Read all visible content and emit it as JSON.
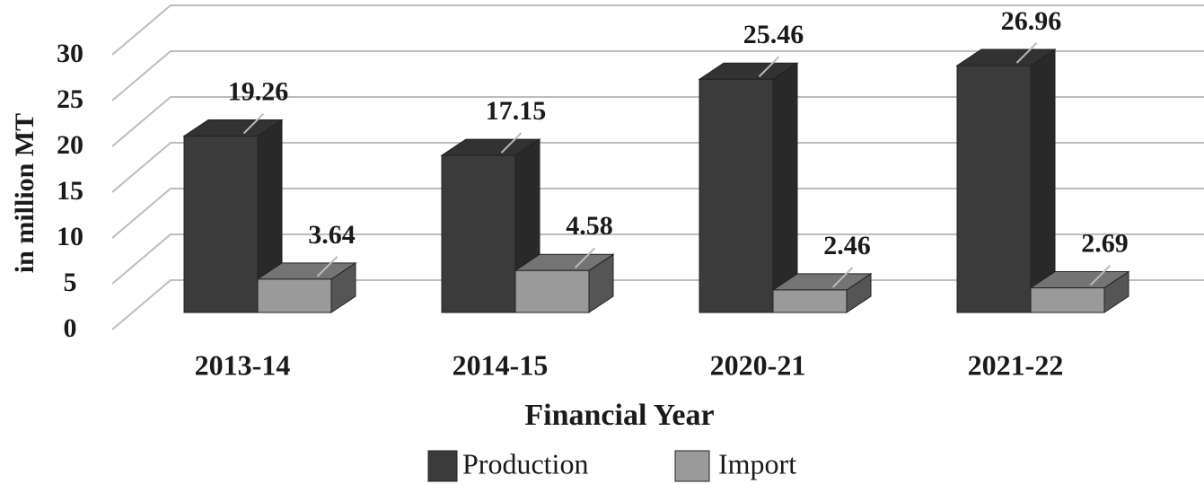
{
  "chart_data": {
    "type": "bar3d",
    "categories": [
      "2013-14",
      "2014-15",
      "2020-21",
      "2021-22"
    ],
    "series": [
      {
        "name": "Production",
        "color": "#3b3b3b",
        "values": [
          19.26,
          17.15,
          25.46,
          26.96
        ]
      },
      {
        "name": "Import",
        "color": "#9a9a9a",
        "values": [
          3.64,
          4.58,
          2.46,
          2.69
        ]
      }
    ],
    "ylim": [
      0,
      30
    ],
    "yticks": [
      0,
      5,
      10,
      15,
      20,
      25,
      30
    ],
    "ylabel": "in million MT",
    "xlabel": "Financial Year",
    "grid": true,
    "legend": "bottom"
  }
}
